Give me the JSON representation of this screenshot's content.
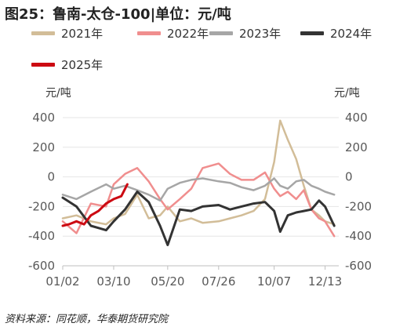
{
  "title": "图25：鲁南-太仓-100|单位：元/吨",
  "unit_left": "元/吨",
  "unit_right": "元/吨",
  "source": "资料来源：同花顺，华泰期货研究院",
  "colors": {
    "2021年": "#d2bd98",
    "2022年": "#f08e8e",
    "2023年": "#a6a6a6",
    "2024年": "#333333",
    "2025年": "#cc0a12"
  },
  "chart_data": {
    "type": "line",
    "title": "图25：鲁南-太仓-100|单位：元/吨",
    "x_ticks": [
      "01/02",
      "03/10",
      "05/20",
      "07/26",
      "10/07",
      "12/13"
    ],
    "y_ticks": [
      400,
      200,
      0,
      -200,
      -400,
      -600
    ],
    "ylim": [
      -600,
      400
    ],
    "grid": false,
    "legend_position": "top",
    "series": [
      {
        "name": "2021年",
        "x": [
          "01/02",
          "01/20",
          "02/08",
          "02/28",
          "03/10",
          "03/25",
          "04/10",
          "04/25",
          "05/10",
          "05/20",
          "06/05",
          "06/20",
          "07/05",
          "07/26",
          "08/10",
          "08/25",
          "09/10",
          "09/25",
          "10/07",
          "10/15",
          "10/25",
          "11/05",
          "11/15",
          "11/25",
          "12/05",
          "12/13",
          "12/25"
        ],
        "y": [
          -280,
          -260,
          -300,
          -320,
          -280,
          -250,
          -120,
          -280,
          -260,
          -200,
          -300,
          -280,
          -310,
          -300,
          -280,
          -260,
          -230,
          -150,
          100,
          380,
          250,
          120,
          -60,
          -220,
          -260,
          -300,
          -320
        ]
      },
      {
        "name": "2022年",
        "x": [
          "01/02",
          "01/20",
          "02/08",
          "02/28",
          "03/10",
          "03/25",
          "04/10",
          "04/25",
          "05/10",
          "05/20",
          "06/05",
          "06/20",
          "07/05",
          "07/26",
          "08/10",
          "08/25",
          "09/10",
          "09/25",
          "10/07",
          "10/15",
          "10/25",
          "11/05",
          "11/15",
          "11/25",
          "12/05",
          "12/13",
          "12/25"
        ],
        "y": [
          -300,
          -380,
          -180,
          -200,
          -50,
          20,
          60,
          -30,
          -150,
          -220,
          -150,
          -80,
          60,
          90,
          20,
          -20,
          -20,
          30,
          -80,
          -130,
          -100,
          -150,
          -90,
          -220,
          -280,
          -300,
          -400
        ]
      },
      {
        "name": "2023年",
        "x": [
          "01/02",
          "01/20",
          "02/08",
          "02/28",
          "03/10",
          "03/25",
          "04/10",
          "04/25",
          "05/10",
          "05/20",
          "06/05",
          "06/20",
          "07/05",
          "07/26",
          "08/10",
          "08/25",
          "09/10",
          "09/25",
          "10/07",
          "10/15",
          "10/25",
          "11/05",
          "11/15",
          "11/25",
          "12/05",
          "12/13",
          "12/25"
        ],
        "y": [
          -120,
          -150,
          -100,
          -50,
          -80,
          -60,
          -90,
          -120,
          -160,
          -80,
          -40,
          -20,
          -10,
          -30,
          -40,
          -70,
          -90,
          -60,
          -10,
          -60,
          -80,
          -30,
          -20,
          -60,
          -80,
          -100,
          -120
        ]
      },
      {
        "name": "2024年",
        "x": [
          "01/02",
          "01/20",
          "02/08",
          "02/28",
          "03/10",
          "03/25",
          "04/10",
          "04/25",
          "05/10",
          "05/20",
          "06/05",
          "06/20",
          "07/05",
          "07/26",
          "08/10",
          "08/25",
          "09/10",
          "09/25",
          "10/07",
          "10/15",
          "10/25",
          "11/05",
          "11/15",
          "11/25",
          "12/05",
          "12/13",
          "12/25"
        ],
        "y": [
          -140,
          -200,
          -330,
          -360,
          -300,
          -220,
          -100,
          -170,
          -330,
          -460,
          -220,
          -230,
          -200,
          -190,
          -220,
          -200,
          -180,
          -170,
          -230,
          -370,
          -260,
          -240,
          -230,
          -220,
          -160,
          -200,
          -330
        ]
      },
      {
        "name": "2025年",
        "x": [
          "01/02",
          "01/10",
          "01/20",
          "01/30",
          "02/08",
          "02/18",
          "02/28",
          "03/10",
          "03/20",
          "03/28"
        ],
        "y": [
          -330,
          -320,
          -300,
          -320,
          -260,
          -230,
          -180,
          -150,
          -130,
          -50
        ]
      }
    ]
  }
}
